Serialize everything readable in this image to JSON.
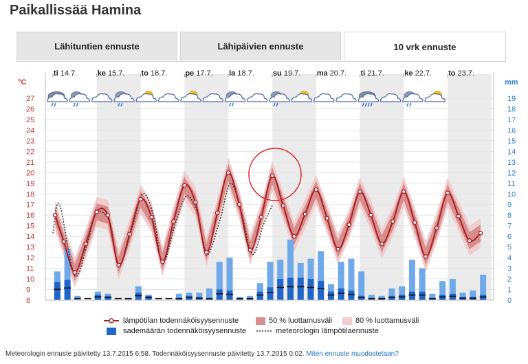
{
  "page": {
    "title": "Paikallissää Hamina"
  },
  "tabs": [
    {
      "label": "Lähituntien ennuste",
      "active": false
    },
    {
      "label": "Lähipäivien ennuste",
      "active": false
    },
    {
      "label": "10 vrk ennuste",
      "active": true
    }
  ],
  "colors": {
    "temp_line": "#a81e24",
    "band50": "#d88c8c",
    "band80": "#f0cccc",
    "precip_prob": "#1f66c8",
    "precip_light": "#6fa9ea",
    "highlight_circle": "#dd2222",
    "weekend_shade": "#ebebeb"
  },
  "chart_data": {
    "type": "line",
    "left_axis_unit": "°C",
    "right_axis_unit": "mm",
    "ylim_temp": [
      8,
      27
    ],
    "ylim_precip": [
      0,
      19
    ],
    "left_ticks": [
      "8",
      "9",
      "10",
      "11",
      "12",
      "13",
      "14",
      "15",
      "16",
      "17",
      "18",
      "19",
      "20",
      "21",
      "22",
      "23",
      "24",
      "25",
      "26",
      "27"
    ],
    "right_ticks": [
      "0",
      "1",
      "2",
      "3",
      "4",
      "5",
      "6",
      "7",
      "8",
      "9",
      "10",
      "11",
      "12",
      "13",
      "14",
      "15",
      "16",
      "17",
      "18",
      "19"
    ],
    "days": [
      {
        "name": "ti",
        "date": "14.7."
      },
      {
        "name": "ke",
        "date": "15.7."
      },
      {
        "name": "to",
        "date": "16.7."
      },
      {
        "name": "pe",
        "date": "17.7."
      },
      {
        "name": "la",
        "date": "18.7."
      },
      {
        "name": "su",
        "date": "19.7."
      },
      {
        "name": "ma",
        "date": "20.7."
      },
      {
        "name": "ti",
        "date": "21.7."
      },
      {
        "name": "ke",
        "date": "22.7."
      },
      {
        "name": "to",
        "date": "23.7."
      }
    ],
    "day_start": 0.15,
    "days_shown": 10,
    "weather_symbols": [
      "rain",
      "partly-rain",
      "cloudy",
      "partly-rain",
      "partly-sunny",
      "partly-cloudy",
      "partly-sunny",
      "cloudy",
      "partly-rain",
      "cloudy",
      "partly-rain",
      "partly-sunny",
      "cloudy",
      "cloudy",
      "heavy-rain",
      "cloudy",
      "partly-rain",
      "partly-sunny"
    ],
    "temperature_forecast": [
      [
        0.05,
        16.0
      ],
      [
        0.25,
        13.5
      ],
      [
        0.5,
        10.6
      ],
      [
        0.75,
        13.3
      ],
      [
        1.0,
        16.3
      ],
      [
        1.25,
        16.0
      ],
      [
        1.5,
        11.3
      ],
      [
        1.75,
        14.2
      ],
      [
        2.0,
        17.5
      ],
      [
        2.25,
        15.8
      ],
      [
        2.5,
        11.6
      ],
      [
        2.75,
        15.4
      ],
      [
        3.0,
        18.8
      ],
      [
        3.25,
        17.2
      ],
      [
        3.5,
        12.5
      ],
      [
        3.75,
        16.2
      ],
      [
        4.0,
        20.0
      ],
      [
        4.25,
        17.0
      ],
      [
        4.5,
        12.7
      ],
      [
        4.75,
        15.8
      ],
      [
        5.0,
        19.7
      ],
      [
        5.25,
        16.9
      ],
      [
        5.5,
        14.0
      ],
      [
        5.75,
        16.1
      ],
      [
        6.0,
        18.4
      ],
      [
        6.25,
        15.7
      ],
      [
        6.5,
        12.8
      ],
      [
        6.75,
        15.1
      ],
      [
        7.0,
        18.2
      ],
      [
        7.25,
        16.0
      ],
      [
        7.5,
        13.3
      ],
      [
        7.75,
        15.4
      ],
      [
        8.0,
        18.2
      ],
      [
        8.25,
        15.3
      ],
      [
        8.5,
        12.1
      ],
      [
        8.75,
        14.8
      ],
      [
        9.0,
        18.1
      ],
      [
        9.25,
        15.9
      ],
      [
        9.5,
        13.6
      ],
      [
        9.75,
        14.3
      ]
    ],
    "meteorologist_forecast": [
      [
        0.0,
        14.3
      ],
      [
        0.15,
        17.0
      ],
      [
        0.5,
        10.3
      ],
      [
        0.8,
        13.6
      ],
      [
        1.0,
        16.3
      ],
      [
        1.3,
        15.3
      ],
      [
        1.5,
        11.1
      ],
      [
        1.8,
        14.7
      ],
      [
        2.05,
        18.0
      ],
      [
        2.3,
        15.9
      ],
      [
        2.5,
        11.4
      ],
      [
        2.8,
        15.3
      ],
      [
        3.05,
        17.8
      ],
      [
        3.3,
        16.1
      ],
      [
        3.5,
        12.2
      ],
      [
        3.8,
        15.4
      ],
      [
        4.05,
        19.0
      ],
      [
        4.3,
        16.2
      ],
      [
        4.55,
        12.3
      ],
      [
        4.8,
        15.1
      ],
      [
        5.0,
        16.9
      ]
    ],
    "band_halfwidth_50": 0.8,
    "band_halfwidth_80": 1.4,
    "precip_light_mm": [
      2.7,
      4.8,
      0.4,
      0,
      0.8,
      0.6,
      0,
      0.1,
      1.3,
      0.5,
      0,
      0,
      0.6,
      0.7,
      0.7,
      1.1,
      3.6,
      4.0,
      0.3,
      0.4,
      1.6,
      3.6,
      3.8,
      5.7,
      3.5,
      3.9,
      4.6,
      1.5,
      3.6,
      3.9,
      2.7,
      0.5,
      0.4,
      1.1,
      1.3,
      3.8,
      3.0,
      0.6,
      1.8,
      2.0,
      0.7,
      0.9,
      2.4
    ],
    "precip_prob_mm": [
      1.7,
      1.9,
      0,
      0,
      0.5,
      0.4,
      0,
      0,
      0.7,
      0.4,
      0,
      0,
      0.2,
      0.4,
      0.3,
      0.2,
      1.0,
      0.9,
      0.1,
      0.2,
      0.8,
      1.2,
      2.0,
      2.1,
      2.1,
      2.0,
      1.8,
      0.8,
      1.1,
      0.9,
      0.4,
      0.2,
      0.1,
      0.4,
      0.5,
      0.8,
      0.8,
      0.2,
      0.5,
      0.6,
      0.3,
      0.3,
      0.5
    ]
  },
  "legend": {
    "temp_prob": "lämpötilan todennäköisyysennuste",
    "band50": "50 % luottamusväli",
    "band80": "80 % luottamusväli",
    "precip_prob": "sademäärän todennäköisyysennuste",
    "meteorologist": "meteorologin lämpötilaennuste"
  },
  "footer": {
    "text": "Meteorologin ennuste päivitetty 13.7.2015 6:58. Todennäköisyysennuste päivitetty 13.7.2015 0:02.",
    "link": "Miten ennuste muodostetaan?"
  }
}
